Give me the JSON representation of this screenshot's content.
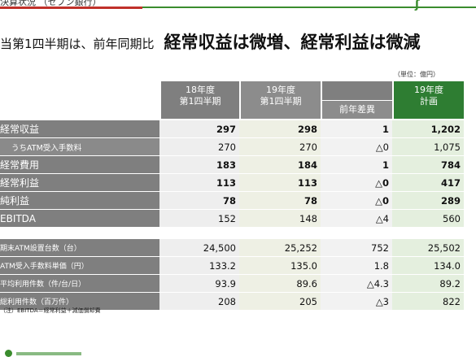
{
  "top": {
    "crumb": "決算状況 （セブン銀行）"
  },
  "headline": {
    "sub": "当第1四半期は、前年同期比",
    "main": "経常収益は微増、経常利益は微減"
  },
  "unit_note": "（単位：億円）",
  "headers": {
    "fy18": [
      "18年度",
      "第1四半期"
    ],
    "fy19": [
      "19年度",
      "第1四半期"
    ],
    "diff": "前年差異",
    "plan": [
      "19年度",
      "計画"
    ]
  },
  "table1": [
    {
      "label": "経常収益",
      "fy18": "297",
      "fy19": "298",
      "diff": "1",
      "plan": "1,202",
      "bold": true,
      "sub": false
    },
    {
      "label": "うちATM受入手数料",
      "fy18": "270",
      "fy19": "270",
      "diff": "△0",
      "plan": "1,075",
      "bold": false,
      "sub": true
    },
    {
      "label": "経常費用",
      "fy18": "183",
      "fy19": "184",
      "diff": "1",
      "plan": "784",
      "bold": true,
      "sub": false
    },
    {
      "label": "経常利益",
      "fy18": "113",
      "fy19": "113",
      "diff": "△0",
      "plan": "417",
      "bold": true,
      "sub": false
    },
    {
      "label": "純利益",
      "fy18": "78",
      "fy19": "78",
      "diff": "△0",
      "plan": "289",
      "bold": true,
      "sub": false
    },
    {
      "label": "EBITDA",
      "fy18": "152",
      "fy19": "148",
      "diff": "△4",
      "plan": "560",
      "bold": false,
      "sub": false
    }
  ],
  "table2": [
    {
      "label": "期末ATM設置台数（台）",
      "fy18": "24,500",
      "fy19": "25,252",
      "diff": "752",
      "plan": "25,502"
    },
    {
      "label": "ATM受入手数料単価（円）",
      "fy18": "133.2",
      "fy19": "135.0",
      "diff": "1.8",
      "plan": "134.0"
    },
    {
      "label": "平均利用件数（件/台/日）",
      "fy18": "93.9",
      "fy19": "89.6",
      "diff": "△4.3",
      "plan": "89.2"
    },
    {
      "label": "総利用件数（百万件）",
      "fy18": "208",
      "fy19": "205",
      "diff": "△3",
      "plan": "822"
    }
  ],
  "footnote": "（注）EBITDA＝経常利益＋減価償却費"
}
